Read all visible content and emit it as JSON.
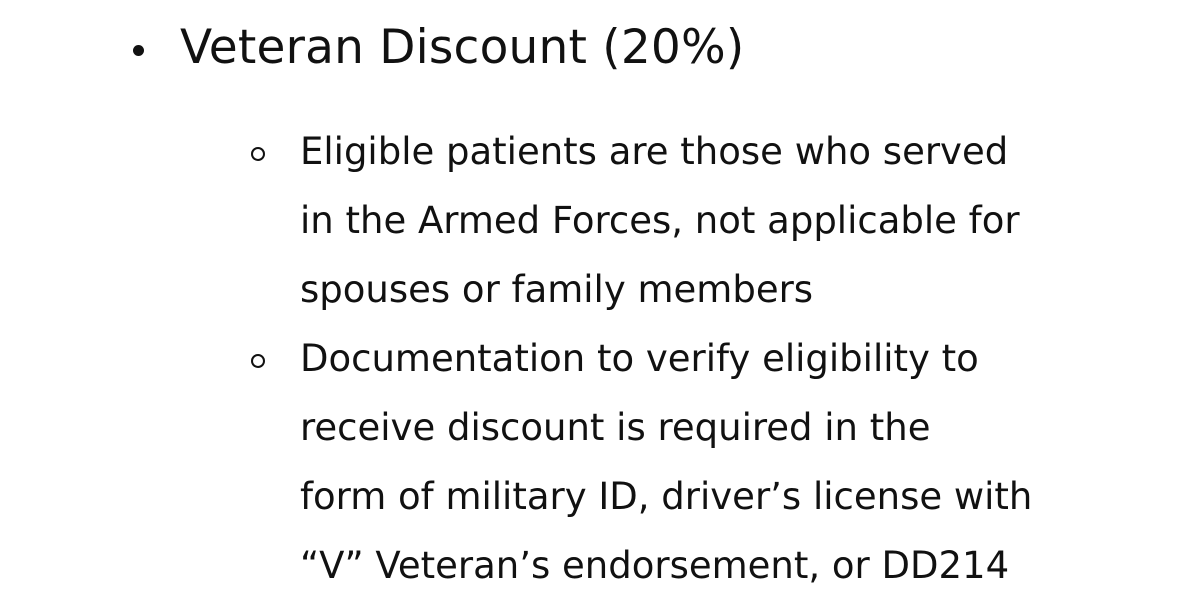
{
  "heading": "Veteran Discount (20%)",
  "items": [
    {
      "lines": [
        "Eligible patients are those who served",
        "in the Armed Forces, not applicable for",
        "spouses or family members"
      ]
    },
    {
      "lines": [
        "Documentation to verify eligibility to",
        "receive discount is required in the",
        "form of military ID, driver’s license with",
        "“V” Veteran’s endorsement, or DD214"
      ]
    }
  ]
}
